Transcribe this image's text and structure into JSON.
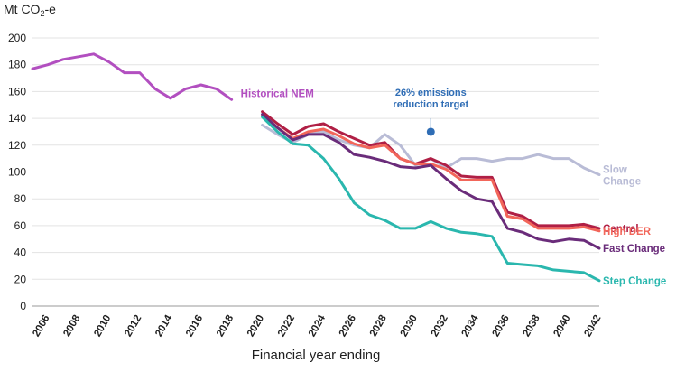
{
  "chart_data": {
    "type": "line",
    "title": "",
    "ylabel": {
      "pre": "Mt CO",
      "sub": "2",
      "post": "-e"
    },
    "xlabel": "Financial year ending",
    "ylim": [
      0,
      200
    ],
    "yticks": [
      0,
      20,
      40,
      60,
      80,
      100,
      120,
      140,
      160,
      180,
      200
    ],
    "xlim": [
      2005,
      2042
    ],
    "xticks": [
      2006,
      2008,
      2010,
      2012,
      2014,
      2016,
      2018,
      2020,
      2022,
      2024,
      2026,
      2028,
      2030,
      2032,
      2034,
      2036,
      2038,
      2040,
      2042
    ],
    "grid": true,
    "annotation": {
      "lines": [
        "26% emissions",
        "reduction target"
      ],
      "x": 2031,
      "y": 130,
      "color": "#2f6db5"
    },
    "series": [
      {
        "name": "Historical NEM",
        "color": "#b24fc0",
        "x": [
          2005,
          2006,
          2007,
          2008,
          2009,
          2010,
          2011,
          2012,
          2013,
          2014,
          2015,
          2016,
          2017,
          2018
        ],
        "y": [
          177,
          180,
          184,
          186,
          188,
          182,
          174,
          174,
          162,
          155,
          162,
          165,
          162,
          154
        ]
      },
      {
        "name": "Slow Change",
        "color": "#b9bcd6",
        "x": [
          2020,
          2021,
          2022,
          2023,
          2024,
          2025,
          2026,
          2027,
          2028,
          2029,
          2030,
          2031,
          2032,
          2033,
          2034,
          2035,
          2036,
          2037,
          2038,
          2039,
          2040,
          2041,
          2042
        ],
        "y": [
          135,
          128,
          122,
          128,
          130,
          124,
          120,
          118,
          128,
          120,
          105,
          110,
          103,
          110,
          110,
          108,
          110,
          110,
          113,
          110,
          110,
          103,
          98
        ]
      },
      {
        "name": "Central",
        "color": "#b01f45",
        "x": [
          2020,
          2021,
          2022,
          2023,
          2024,
          2025,
          2026,
          2027,
          2028,
          2029,
          2030,
          2031,
          2032,
          2033,
          2034,
          2035,
          2036,
          2037,
          2038,
          2039,
          2040,
          2041,
          2042
        ],
        "y": [
          145,
          136,
          128,
          134,
          136,
          130,
          125,
          120,
          122,
          110,
          106,
          110,
          105,
          97,
          96,
          96,
          70,
          67,
          60,
          60,
          60,
          61,
          58
        ]
      },
      {
        "name": "High DER",
        "color": "#f2665a",
        "x": [
          2020,
          2021,
          2022,
          2023,
          2024,
          2025,
          2026,
          2027,
          2028,
          2029,
          2030,
          2031,
          2032,
          2033,
          2034,
          2035,
          2036,
          2037,
          2038,
          2039,
          2040,
          2041,
          2042
        ],
        "y": [
          142,
          133,
          125,
          130,
          132,
          127,
          121,
          118,
          120,
          110,
          106,
          106,
          102,
          94,
          94,
          94,
          67,
          65,
          58,
          58,
          58,
          59,
          56
        ]
      },
      {
        "name": "Fast Change",
        "color": "#6a2c7a",
        "x": [
          2020,
          2021,
          2022,
          2023,
          2024,
          2025,
          2026,
          2027,
          2028,
          2029,
          2030,
          2031,
          2032,
          2033,
          2034,
          2035,
          2036,
          2037,
          2038,
          2039,
          2040,
          2041,
          2042
        ],
        "y": [
          143,
          133,
          124,
          128,
          128,
          122,
          113,
          111,
          108,
          104,
          103,
          105,
          95,
          86,
          80,
          78,
          58,
          55,
          50,
          48,
          50,
          49,
          43
        ]
      },
      {
        "name": "Step Change",
        "color": "#2ab7ae",
        "x": [
          2020,
          2021,
          2022,
          2023,
          2024,
          2025,
          2026,
          2027,
          2028,
          2029,
          2030,
          2031,
          2032,
          2033,
          2034,
          2035,
          2036,
          2037,
          2038,
          2039,
          2040,
          2041,
          2042
        ],
        "y": [
          141,
          130,
          121,
          120,
          110,
          95,
          77,
          68,
          64,
          58,
          58,
          63,
          58,
          55,
          54,
          52,
          32,
          31,
          30,
          27,
          26,
          25,
          19
        ]
      }
    ],
    "legend_labels": [
      {
        "lines": [
          "Historical NEM"
        ],
        "series": 0,
        "place": "end-right"
      },
      {
        "lines": [
          "Slow",
          "Change"
        ],
        "series": 1,
        "place": "right"
      },
      {
        "lines": [
          "Central"
        ],
        "series": 2,
        "place": "right"
      },
      {
        "lines": [
          "High DER"
        ],
        "series": 3,
        "place": "right"
      },
      {
        "lines": [
          "Fast Change"
        ],
        "series": 4,
        "place": "right"
      },
      {
        "lines": [
          "Step Change"
        ],
        "series": 5,
        "place": "right"
      }
    ]
  }
}
